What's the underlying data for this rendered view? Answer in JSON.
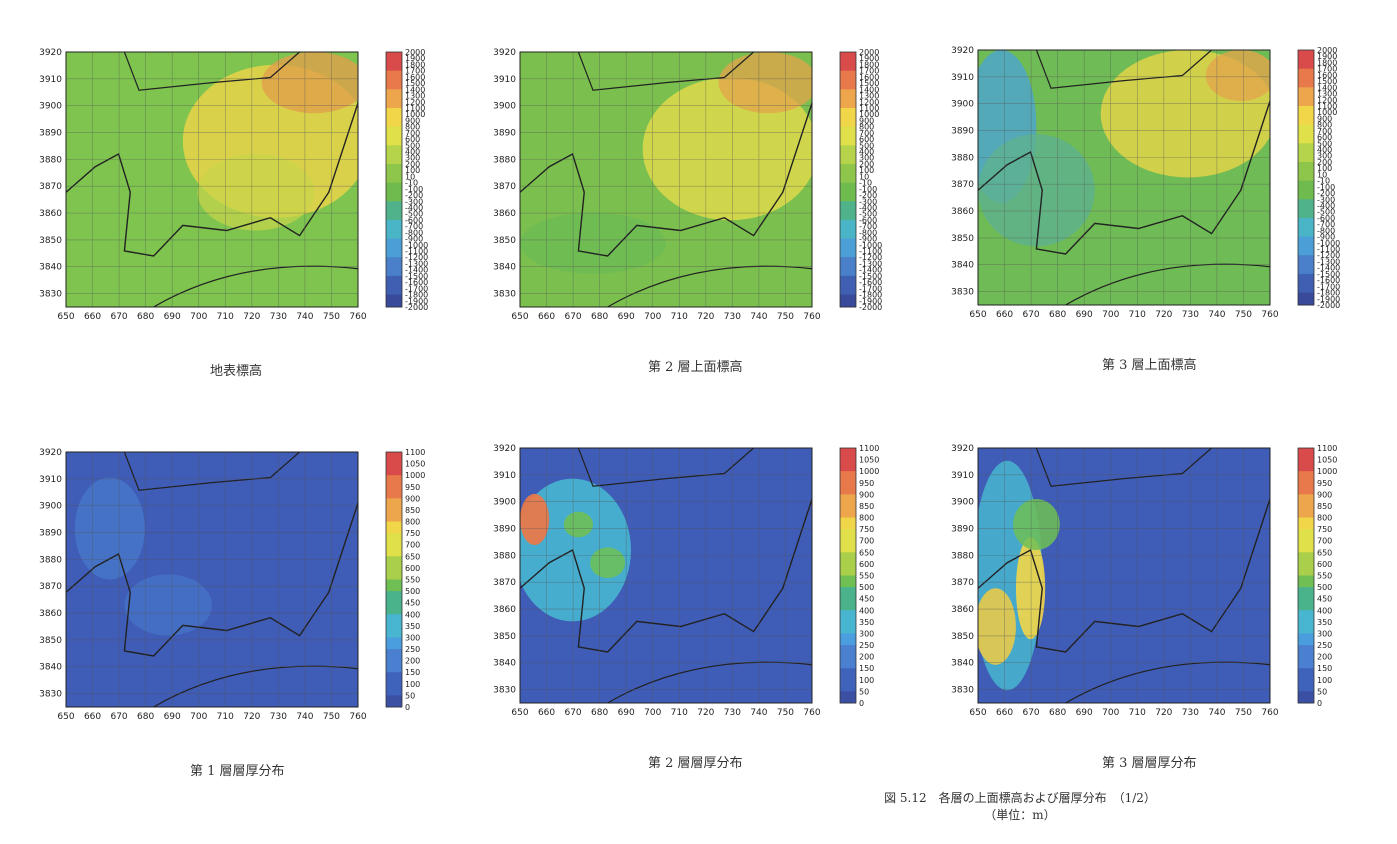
{
  "panels": [
    {
      "caption": "地表標高",
      "colorbar": [
        "2000",
        "1900",
        "1800",
        "1700",
        "1600",
        "1500",
        "1400",
        "1300",
        "1200",
        "1100",
        "1000",
        "900",
        "800",
        "700",
        "600",
        "500",
        "400",
        "300",
        "200",
        "100",
        "10",
        "-10",
        "-100",
        "-200",
        "-300",
        "-400",
        "-500",
        "-600",
        "-700",
        "-800",
        "-900",
        "-1000",
        "-1100",
        "-1200",
        "-1300",
        "-1400",
        "-1500",
        "-1600",
        "-1700",
        "-1800",
        "-1900",
        "-2000"
      ]
    },
    {
      "caption": "第 2 層上面標高",
      "colorbar": [
        "2000",
        "1900",
        "1800",
        "1700",
        "1600",
        "1500",
        "1400",
        "1300",
        "1200",
        "1100",
        "1000",
        "900",
        "800",
        "700",
        "600",
        "500",
        "400",
        "300",
        "200",
        "100",
        "10",
        "-10",
        "-100",
        "-200",
        "-300",
        "-400",
        "-500",
        "-600",
        "-700",
        "-800",
        "-900",
        "-1000",
        "-1100",
        "-1200",
        "-1300",
        "-1400",
        "-1500",
        "-1600",
        "-1700",
        "-1800",
        "-1900",
        "-2000"
      ]
    },
    {
      "caption": "第 3 層上面標高",
      "colorbar": [
        "2000",
        "1900",
        "1800",
        "1700",
        "1600",
        "1500",
        "1400",
        "1300",
        "1200",
        "1100",
        "1000",
        "900",
        "800",
        "700",
        "600",
        "500",
        "400",
        "300",
        "200",
        "100",
        "10",
        "-10",
        "-100",
        "-200",
        "-300",
        "-400",
        "-500",
        "-600",
        "-700",
        "-800",
        "-900",
        "-1000",
        "-1100",
        "-1200",
        "-1300",
        "-1400",
        "-1500",
        "-1600",
        "-1700",
        "-1800",
        "-1900",
        "-2000"
      ]
    },
    {
      "caption": "第 1 層層厚分布",
      "colorbar": [
        "1100",
        "1050",
        "1000",
        "950",
        "900",
        "850",
        "800",
        "750",
        "700",
        "650",
        "600",
        "550",
        "500",
        "450",
        "400",
        "350",
        "300",
        "250",
        "200",
        "150",
        "100",
        "50",
        "0"
      ]
    },
    {
      "caption": "第 2 層層厚分布",
      "colorbar": [
        "1100",
        "1050",
        "1000",
        "950",
        "900",
        "850",
        "800",
        "750",
        "700",
        "650",
        "600",
        "550",
        "500",
        "450",
        "400",
        "350",
        "300",
        "250",
        "200",
        "150",
        "100",
        "50",
        "0"
      ]
    },
    {
      "caption": "第 3 層層厚分布",
      "colorbar": [
        "1100",
        "1050",
        "1000",
        "950",
        "900",
        "850",
        "800",
        "750",
        "700",
        "650",
        "600",
        "550",
        "500",
        "450",
        "400",
        "350",
        "300",
        "250",
        "200",
        "150",
        "100",
        "50",
        "0"
      ]
    }
  ],
  "figure_caption": {
    "line1": "図 5.12　各層の上面標高および層厚分布　（1/2）",
    "line2": "（単位：m）"
  },
  "colors": {
    "elevation_ramp": [
      "#d94b4b",
      "#e8794a",
      "#eea64d",
      "#f2d649",
      "#dfe04a",
      "#b6d44b",
      "#8ec64c",
      "#6fbb4e",
      "#4fb28a",
      "#49b5c6",
      "#4c9fd6",
      "#4a7fc9",
      "#3f5fb3",
      "#3a4a9a"
    ],
    "thickness_ramp": [
      "#d94b4b",
      "#e8794a",
      "#eea64d",
      "#f2d649",
      "#dfe04a",
      "#a9cf4b",
      "#6fbf55",
      "#4bb38c",
      "#48b6d0",
      "#4b9ede",
      "#4a80cf",
      "#3f63bb",
      "#3b4fa3"
    ]
  },
  "chart_data": [
    {
      "type": "heatmap",
      "title": "",
      "xticks": [
        "650",
        "660",
        "670",
        "680",
        "690",
        "700",
        "710",
        "720",
        "730",
        "740",
        "750",
        "760"
      ],
      "yticks": [
        "3920",
        "3910",
        "3900",
        "3890",
        "3880",
        "3870",
        "3860",
        "3850",
        "3840",
        "3830"
      ],
      "xlim": [
        650,
        760
      ],
      "ylim": [
        3825,
        3920
      ],
      "value_range": [
        -2000,
        2000
      ]
    },
    {
      "type": "heatmap",
      "title": "",
      "xticks": [
        "650",
        "660",
        "670",
        "680",
        "690",
        "700",
        "710",
        "720",
        "730",
        "740",
        "750",
        "760"
      ],
      "yticks": [
        "3920",
        "3910",
        "3900",
        "3890",
        "3880",
        "3870",
        "3860",
        "3850",
        "3840",
        "3830"
      ],
      "xlim": [
        650,
        760
      ],
      "ylim": [
        3825,
        3920
      ],
      "value_range": [
        -2000,
        2000
      ]
    },
    {
      "type": "heatmap",
      "title": "",
      "xticks": [
        "650",
        "660",
        "670",
        "680",
        "690",
        "700",
        "710",
        "720",
        "730",
        "740",
        "750",
        "760"
      ],
      "yticks": [
        "3920",
        "3910",
        "3900",
        "3890",
        "3880",
        "3870",
        "3860",
        "3850",
        "3840",
        "3830"
      ],
      "xlim": [
        650,
        760
      ],
      "ylim": [
        3825,
        3920
      ],
      "value_range": [
        -2000,
        2000
      ]
    },
    {
      "type": "heatmap",
      "title": "",
      "xticks": [
        "650",
        "660",
        "670",
        "680",
        "690",
        "700",
        "710",
        "720",
        "730",
        "740",
        "750",
        "760"
      ],
      "yticks": [
        "3920",
        "3910",
        "3900",
        "3890",
        "3880",
        "3870",
        "3860",
        "3850",
        "3840",
        "3830"
      ],
      "xlim": [
        650,
        760
      ],
      "ylim": [
        3825,
        3920
      ],
      "value_range": [
        0,
        1100
      ]
    },
    {
      "type": "heatmap",
      "title": "",
      "xticks": [
        "650",
        "660",
        "670",
        "680",
        "690",
        "700",
        "710",
        "720",
        "730",
        "740",
        "750",
        "760"
      ],
      "yticks": [
        "3920",
        "3910",
        "3900",
        "3890",
        "3880",
        "3870",
        "3860",
        "3850",
        "3840",
        "3830"
      ],
      "xlim": [
        650,
        760
      ],
      "ylim": [
        3825,
        3920
      ],
      "value_range": [
        0,
        1100
      ]
    },
    {
      "type": "heatmap",
      "title": "",
      "xticks": [
        "650",
        "660",
        "670",
        "680",
        "690",
        "700",
        "710",
        "720",
        "730",
        "740",
        "750",
        "760"
      ],
      "yticks": [
        "3920",
        "3910",
        "3900",
        "3890",
        "3880",
        "3870",
        "3860",
        "3850",
        "3840",
        "3830"
      ],
      "xlim": [
        650,
        760
      ],
      "ylim": [
        3825,
        3920
      ],
      "value_range": [
        0,
        1100
      ]
    }
  ]
}
